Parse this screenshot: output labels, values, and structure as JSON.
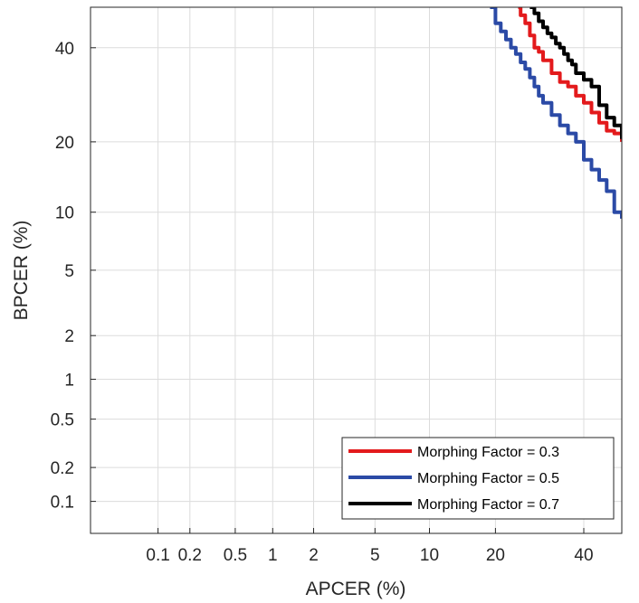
{
  "chart_data": {
    "type": "line",
    "title": "",
    "xlabel": "APCER (%)",
    "ylabel": "BPCER (%)",
    "xscale": "probit",
    "yscale": "probit",
    "xlim": [
      0.02,
      50
    ],
    "ylim": [
      0.05,
      50
    ],
    "xticks": [
      0.1,
      0.2,
      0.5,
      1,
      2,
      5,
      10,
      20,
      40
    ],
    "xtick_labels": [
      "0.1",
      "0.2",
      "0.5",
      "1",
      "2",
      "5",
      "10",
      "20",
      "40"
    ],
    "yticks": [
      0.1,
      0.2,
      0.5,
      1,
      2,
      5,
      10,
      20,
      40
    ],
    "ytick_labels": [
      "0.1",
      "0.2",
      "0.5",
      "1",
      "2",
      "5",
      "10",
      "20",
      "40"
    ],
    "grid": true,
    "legend_position": "bottom-right",
    "series": [
      {
        "name": "Morphing Factor = 0.3",
        "color": "#e31a1c",
        "x": [
          24.5,
          25,
          26,
          27,
          28,
          29,
          30,
          32,
          34,
          36,
          38,
          40,
          42,
          44,
          46,
          48,
          50
        ],
        "y": [
          50,
          48,
          46,
          43,
          40,
          39,
          37,
          34,
          32,
          31,
          29,
          27.5,
          25.5,
          23.5,
          22,
          21.5,
          20
        ]
      },
      {
        "name": "Morphing Factor = 0.5",
        "color": "#2b4aa6",
        "x": [
          19,
          20,
          21,
          22,
          23,
          24,
          25,
          26,
          27,
          28,
          29,
          30,
          32,
          34,
          36,
          38,
          40,
          42,
          44,
          46,
          48,
          50
        ],
        "y": [
          50,
          46,
          44,
          42,
          40,
          38.5,
          36.5,
          35,
          33,
          31,
          29,
          27.5,
          25,
          23,
          21.5,
          20,
          17,
          15.5,
          14,
          12.5,
          10,
          9.3
        ]
      },
      {
        "name": "Morphing Factor = 0.7",
        "color": "#000000",
        "x": [
          27,
          28,
          29,
          30,
          31,
          32,
          33,
          34,
          35,
          36,
          37,
          38,
          40,
          42,
          44,
          46,
          48,
          50
        ],
        "y": [
          50,
          48.5,
          46.5,
          45,
          43.5,
          42.5,
          41,
          40,
          38.5,
          37,
          36,
          34,
          32.5,
          31,
          27,
          24.5,
          23,
          20.5
        ]
      }
    ]
  }
}
